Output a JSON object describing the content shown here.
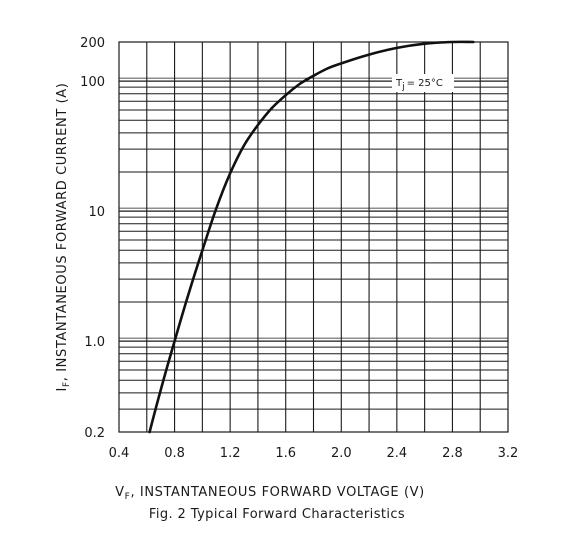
{
  "chart_data": {
    "type": "line",
    "title": "",
    "caption": "Fig. 2  Typical Forward Characteristics",
    "xlabel": {
      "symbol": "V",
      "sub": "F",
      "text": ", INSTANTANEOUS FORWARD VOLTAGE (V)"
    },
    "ylabel": {
      "symbol": "I",
      "sub": "F",
      "text": ", INSTANTANEOUS FORWARD CURRENT (A)"
    },
    "annotation": {
      "symbol": "T",
      "sub": "j",
      "text": "= 25°C"
    },
    "xlim": [
      0.4,
      3.2
    ],
    "ylim": [
      0.2,
      200
    ],
    "yscale": "log",
    "grid": true,
    "x_ticks": [
      "0.4",
      "0.8",
      "1.2",
      "1.6",
      "2.0",
      "2.4",
      "2.8",
      "3.2"
    ],
    "x_tick_values": [
      0.4,
      0.8,
      1.2,
      1.6,
      2.0,
      2.4,
      2.8,
      3.2
    ],
    "y_ticks": [
      "0.2",
      "1.0",
      "10",
      "100",
      "200"
    ],
    "y_tick_values": [
      0.2,
      1.0,
      10,
      100,
      200
    ],
    "series": [
      {
        "x": [
          0.62,
          0.7,
          0.8,
          0.9,
          1.0,
          1.1,
          1.2,
          1.3,
          1.4,
          1.5,
          1.6,
          1.7,
          1.8,
          1.9,
          2.0,
          2.2,
          2.4,
          2.6,
          2.8,
          2.95
        ],
        "y": [
          0.2,
          0.42,
          1.0,
          2.3,
          5.0,
          10.5,
          19.5,
          32,
          46,
          62,
          78,
          95,
          110,
          125,
          137,
          160,
          180,
          194,
          200,
          200
        ]
      }
    ]
  }
}
